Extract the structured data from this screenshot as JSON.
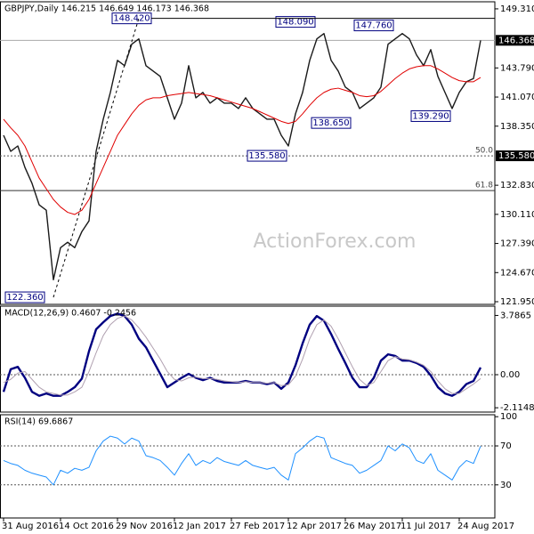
{
  "chart_data": [
    {
      "type": "line",
      "title": "GBPJPY,Daily  146.215 146.649 146.173 146.368",
      "watermark": "ActionForex.com",
      "ylim": [
        121.7,
        149.97
      ],
      "yticks": [
        {
          "value": 149.31,
          "label": "149.310"
        },
        {
          "value": 143.79,
          "label": "143.790"
        },
        {
          "value": 141.07,
          "label": "141.070"
        },
        {
          "value": 138.35,
          "label": "138.350"
        },
        {
          "value": 132.83,
          "label": "132.830"
        },
        {
          "value": 130.11,
          "label": "130.110"
        },
        {
          "value": 127.39,
          "label": "127.390"
        },
        {
          "value": 124.67,
          "label": "124.670"
        },
        {
          "value": 121.95,
          "label": "121.950"
        }
      ],
      "series": [
        {
          "color": "#1a1a1a",
          "width": 1.4,
          "values": [
            137.5,
            136.0,
            136.5,
            134.5,
            133.0,
            131.0,
            130.5,
            124.0,
            127.0,
            127.5,
            127.0,
            128.5,
            129.5,
            136.0,
            139.0,
            141.5,
            144.5,
            144.0,
            146.0,
            146.5,
            144.0,
            143.5,
            143.0,
            141.0,
            139.0,
            140.5,
            144.0,
            141.0,
            141.5,
            140.5,
            141.0,
            140.5,
            140.5,
            140.0,
            141.0,
            140.0,
            139.5,
            139.0,
            139.0,
            137.5,
            136.5,
            139.5,
            141.5,
            144.5,
            146.5,
            147.0,
            144.5,
            143.5,
            142.0,
            141.5,
            140.0,
            140.5,
            141.0,
            142.0,
            146.0,
            146.5,
            147.0,
            146.5,
            145.0,
            144.0,
            145.5,
            143.0,
            141.5,
            140.0,
            141.5,
            142.5,
            142.8,
            146.368
          ]
        },
        {
          "color": "#e00000",
          "width": 1,
          "values": [
            139,
            138.2,
            137.5,
            136.5,
            135,
            133.5,
            132.5,
            131.5,
            130.8,
            130.3,
            130.1,
            130.5,
            131.5,
            133,
            134.5,
            136,
            137.5,
            138.5,
            139.5,
            140.3,
            140.8,
            141,
            141,
            141.2,
            141.3,
            141.4,
            141.5,
            141.4,
            141.3,
            141.2,
            141,
            140.8,
            140.6,
            140.4,
            140.2,
            140,
            139.7,
            139.4,
            139.1,
            138.8,
            138.6,
            138.8,
            139.5,
            140.3,
            141.0,
            141.5,
            141.8,
            141.9,
            141.7,
            141.5,
            141.2,
            141.1,
            141.2,
            141.6,
            142.2,
            142.8,
            143.3,
            143.7,
            143.9,
            144.0,
            144.0,
            143.7,
            143.3,
            142.9,
            142.6,
            142.5,
            142.5,
            142.9
          ]
        }
      ],
      "annotations": [
        {
          "value": 148.42,
          "label": "148.420",
          "x": 18
        },
        {
          "value": 148.09,
          "label": "148.090",
          "x": 41
        },
        {
          "value": 147.76,
          "label": "147.760",
          "x": 52
        },
        {
          "value": 138.65,
          "label": "138.650",
          "x": 46
        },
        {
          "value": 139.29,
          "label": "139.290",
          "x": 60
        },
        {
          "value": 135.58,
          "label": "135.580",
          "x": 37
        },
        {
          "value": 122.36,
          "label": "122.360",
          "x": 3
        }
      ],
      "levels": [
        {
          "value": 135.58,
          "label": "50.0",
          "style": "dotted"
        },
        {
          "value": 132.33,
          "label": "61.8",
          "style": "solid"
        }
      ],
      "axis_markers": [
        {
          "value": 146.368,
          "label": "146.368"
        },
        {
          "value": 135.58,
          "label": "135.580"
        }
      ]
    },
    {
      "type": "line",
      "title": "MACD(12,26,9) 0.4607 -0.2456",
      "ylim": [
        -2.39,
        4.38
      ],
      "yticks": [
        3.7865,
        {
          "value": 0,
          "label": "0.00"
        },
        -2.1148
      ],
      "series": [
        {
          "color": "#000080",
          "width": 2.4,
          "values": [
            -1.1,
            0.35,
            0.5,
            -0.2,
            -1.1,
            -1.35,
            -1.2,
            -1.35,
            -1.35,
            -1.1,
            -0.8,
            -0.25,
            1.5,
            2.9,
            3.35,
            3.75,
            3.9,
            3.75,
            3.2,
            2.3,
            1.75,
            0.9,
            0.05,
            -0.8,
            -0.5,
            -0.2,
            0.05,
            -0.2,
            -0.35,
            -0.2,
            -0.4,
            -0.5,
            -0.5,
            -0.5,
            -0.4,
            -0.5,
            -0.5,
            -0.6,
            -0.5,
            -0.9,
            -0.5,
            0.6,
            2.0,
            3.2,
            3.75,
            3.45,
            2.6,
            1.65,
            0.75,
            -0.2,
            -0.8,
            -0.8,
            -0.2,
            0.9,
            1.3,
            1.2,
            0.9,
            0.9,
            0.75,
            0.5,
            -0.05,
            -0.8,
            -1.2,
            -1.35,
            -1.1,
            -0.6,
            -0.4,
            0.4607
          ]
        },
        {
          "color": "#b0a0b0",
          "width": 1,
          "values": [
            -0.5,
            -0.3,
            0.1,
            0.2,
            -0.3,
            -0.8,
            -1.1,
            -1.2,
            -1.3,
            -1.3,
            -1.1,
            -0.8,
            0.2,
            1.4,
            2.5,
            3.2,
            3.6,
            3.75,
            3.5,
            3.0,
            2.4,
            1.7,
            1.0,
            0.2,
            -0.3,
            -0.4,
            -0.2,
            -0.15,
            -0.25,
            -0.25,
            -0.3,
            -0.4,
            -0.45,
            -0.5,
            -0.45,
            -0.5,
            -0.5,
            -0.55,
            -0.5,
            -0.7,
            -0.65,
            -0.1,
            1.0,
            2.3,
            3.2,
            3.5,
            3.1,
            2.3,
            1.4,
            0.5,
            -0.3,
            -0.7,
            -0.5,
            0.2,
            0.9,
            1.15,
            1.0,
            0.95,
            0.8,
            0.6,
            0.2,
            -0.4,
            -0.9,
            -1.2,
            -1.2,
            -0.9,
            -0.6,
            -0.2456
          ]
        }
      ],
      "levels": [
        {
          "value": 0,
          "style": "dotted"
        }
      ]
    },
    {
      "type": "line",
      "title": "RSI(14) 69.6867",
      "ylim": [
        -4,
        102
      ],
      "yticks": [
        100,
        70,
        30
      ],
      "categories": [
        "31 Aug 2016",
        null,
        null,
        null,
        null,
        null,
        null,
        null,
        "14 Oct 2016",
        null,
        null,
        null,
        null,
        null,
        null,
        null,
        "29 Nov 2016",
        null,
        null,
        null,
        null,
        null,
        null,
        null,
        "12 Jan 2017",
        null,
        null,
        null,
        null,
        null,
        null,
        null,
        "27 Feb 2017",
        null,
        null,
        null,
        null,
        null,
        null,
        null,
        "12 Apr 2017",
        null,
        null,
        null,
        null,
        null,
        null,
        null,
        "26 May 2017",
        null,
        null,
        null,
        null,
        null,
        null,
        null,
        "11 Jul 2017",
        null,
        null,
        null,
        null,
        null,
        null,
        null,
        "24 Aug 2017",
        null,
        null,
        null
      ],
      "series": [
        {
          "color": "#1e90ff",
          "width": 1,
          "values": [
            55,
            52,
            50,
            45,
            42,
            40,
            38,
            30,
            45,
            42,
            47,
            45,
            48,
            65,
            75,
            80,
            78,
            72,
            78,
            75,
            60,
            58,
            55,
            48,
            40,
            52,
            62,
            50,
            55,
            52,
            58,
            54,
            52,
            50,
            55,
            50,
            48,
            46,
            48,
            40,
            35,
            62,
            68,
            75,
            80,
            78,
            58,
            55,
            52,
            50,
            42,
            45,
            50,
            55,
            70,
            65,
            72,
            68,
            55,
            52,
            62,
            45,
            40,
            35,
            48,
            55,
            52,
            69.6867
          ]
        }
      ],
      "levels": [
        {
          "value": 70,
          "style": "dotted"
        },
        {
          "value": 30,
          "style": "dotted"
        }
      ]
    }
  ]
}
